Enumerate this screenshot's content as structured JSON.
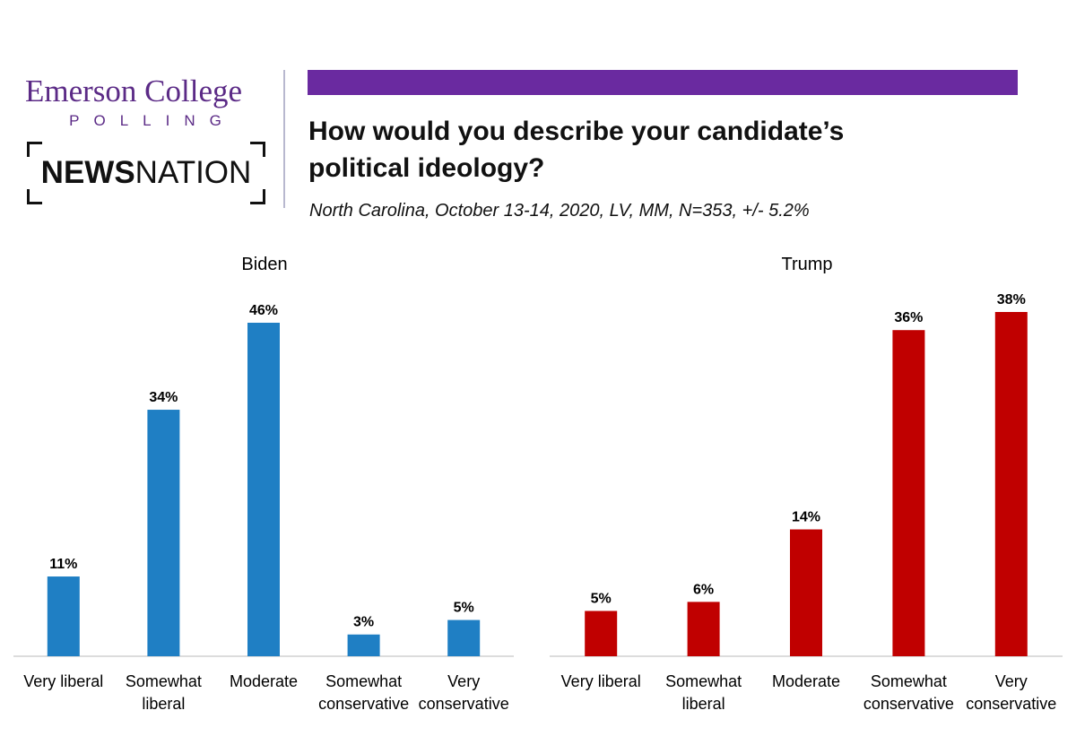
{
  "branding": {
    "emerson_line1": "Emerson College",
    "emerson_line2": "POLLING",
    "newsnation_bold": "NEWS",
    "newsnation_regular": "NATION"
  },
  "header": {
    "title_line1": "How would you describe your candidate’s",
    "title_line2": "political ideology?",
    "subtitle": "North Carolina, October 13-14, 2020, LV, MM, N=353, +/- 5.2%",
    "accent_color": "#6a2aa0"
  },
  "chart_data": [
    {
      "type": "bar",
      "title": "Biden",
      "categories": [
        [
          "Very liberal"
        ],
        [
          "Somewhat",
          "liberal"
        ],
        [
          "Moderate"
        ],
        [
          "Somewhat",
          "conservative"
        ],
        [
          "Very",
          "conservative"
        ]
      ],
      "values": [
        11,
        34,
        46,
        3,
        5
      ],
      "data_labels": [
        "11%",
        "34%",
        "46%",
        "3%",
        "5%"
      ],
      "color": "#1f7fc4",
      "ylim": [
        0,
        50
      ],
      "grid": false
    },
    {
      "type": "bar",
      "title": "Trump",
      "categories": [
        [
          "Very liberal"
        ],
        [
          "Somewhat",
          "liberal"
        ],
        [
          "Moderate"
        ],
        [
          "Somewhat",
          "conservative"
        ],
        [
          "Very",
          "conservative"
        ]
      ],
      "values": [
        5,
        6,
        14,
        36,
        38
      ],
      "data_labels": [
        "5%",
        "6%",
        "14%",
        "36%",
        "38%"
      ],
      "color": "#c00000",
      "ylim": [
        0,
        50
      ],
      "grid": false
    }
  ]
}
